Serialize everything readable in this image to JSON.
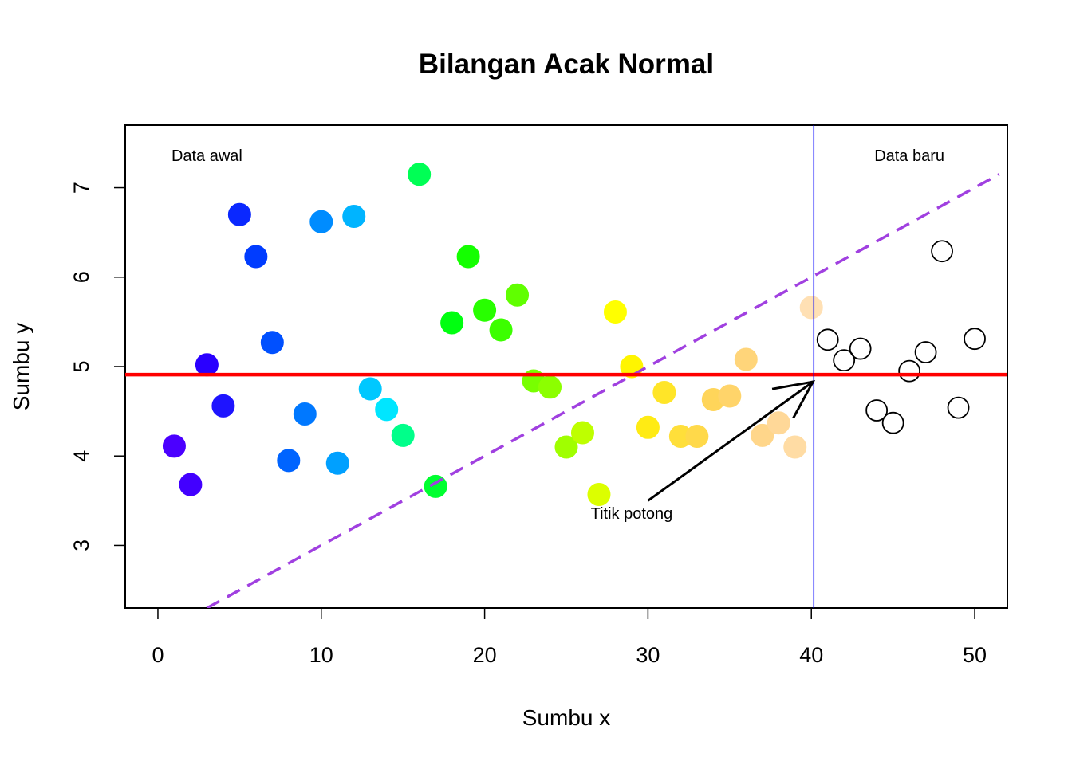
{
  "chart_data": {
    "type": "scatter",
    "title": "Bilangan Acak Normal",
    "xlabel": "Sumbu x",
    "ylabel": "Sumbu y",
    "xlim": [
      -2,
      52
    ],
    "ylim": [
      2.3,
      7.7
    ],
    "xticks": [
      0,
      10,
      20,
      30,
      40,
      50
    ],
    "yticks": [
      3,
      4,
      5,
      6,
      7
    ],
    "grid": false,
    "series": [
      {
        "kind": "filled-rainbow",
        "points": [
          {
            "x": 1,
            "y": 4.11,
            "color": "#4B00FF"
          },
          {
            "x": 2,
            "y": 3.68,
            "color": "#4200FF"
          },
          {
            "x": 3,
            "y": 5.02,
            "color": "#2A00FF"
          },
          {
            "x": 4,
            "y": 4.56,
            "color": "#1E14FF"
          },
          {
            "x": 5,
            "y": 6.7,
            "color": "#0A28FF"
          },
          {
            "x": 6,
            "y": 6.23,
            "color": "#003CFF"
          },
          {
            "x": 7,
            "y": 5.27,
            "color": "#0050FF"
          },
          {
            "x": 8,
            "y": 3.95,
            "color": "#0064FF"
          },
          {
            "x": 9,
            "y": 4.47,
            "color": "#0078FF"
          },
          {
            "x": 10,
            "y": 6.62,
            "color": "#008CFF"
          },
          {
            "x": 11,
            "y": 3.92,
            "color": "#00A0FF"
          },
          {
            "x": 12,
            "y": 6.68,
            "color": "#00B4FF"
          },
          {
            "x": 13,
            "y": 4.75,
            "color": "#00C8FF"
          },
          {
            "x": 14,
            "y": 4.52,
            "color": "#00E6FF"
          },
          {
            "x": 15,
            "y": 4.23,
            "color": "#00FF8A"
          },
          {
            "x": 16,
            "y": 7.15,
            "color": "#00FF55"
          },
          {
            "x": 17,
            "y": 3.66,
            "color": "#00FF30"
          },
          {
            "x": 18,
            "y": 5.49,
            "color": "#00FF10"
          },
          {
            "x": 19,
            "y": 6.23,
            "color": "#14FF00"
          },
          {
            "x": 20,
            "y": 5.63,
            "color": "#28FF00"
          },
          {
            "x": 21,
            "y": 5.41,
            "color": "#3CFF00"
          },
          {
            "x": 22,
            "y": 5.8,
            "color": "#60FF00"
          },
          {
            "x": 23,
            "y": 4.84,
            "color": "#78FF00"
          },
          {
            "x": 24,
            "y": 4.77,
            "color": "#8CFF00"
          },
          {
            "x": 25,
            "y": 4.1,
            "color": "#A0FF00"
          },
          {
            "x": 26,
            "y": 4.26,
            "color": "#BEFF00"
          },
          {
            "x": 27,
            "y": 3.57,
            "color": "#DCFF00"
          },
          {
            "x": 28,
            "y": 5.61,
            "color": "#FFFF00"
          },
          {
            "x": 29,
            "y": 5.0,
            "color": "#FFF500"
          },
          {
            "x": 30,
            "y": 4.32,
            "color": "#FFEB14"
          },
          {
            "x": 31,
            "y": 4.71,
            "color": "#FFE528"
          },
          {
            "x": 32,
            "y": 4.22,
            "color": "#FFDF3A"
          },
          {
            "x": 33,
            "y": 4.22,
            "color": "#FFD94A"
          },
          {
            "x": 34,
            "y": 4.63,
            "color": "#FFD55A"
          },
          {
            "x": 35,
            "y": 4.67,
            "color": "#FFD46A"
          },
          {
            "x": 36,
            "y": 5.08,
            "color": "#FFD57A"
          },
          {
            "x": 37,
            "y": 4.23,
            "color": "#FFD68A"
          },
          {
            "x": 38,
            "y": 4.37,
            "color": "#FFD898"
          },
          {
            "x": 39,
            "y": 4.1,
            "color": "#FFDCA4"
          },
          {
            "x": 40,
            "y": 5.66,
            "color": "#FFE0B4"
          }
        ]
      },
      {
        "kind": "open-circles",
        "color": "#000000",
        "points": [
          {
            "x": 41,
            "y": 5.3
          },
          {
            "x": 42,
            "y": 5.07
          },
          {
            "x": 43,
            "y": 5.2
          },
          {
            "x": 44,
            "y": 4.51
          },
          {
            "x": 45,
            "y": 4.37
          },
          {
            "x": 46,
            "y": 4.95
          },
          {
            "x": 47,
            "y": 5.16
          },
          {
            "x": 48,
            "y": 6.29
          },
          {
            "x": 49,
            "y": 4.54
          },
          {
            "x": 50,
            "y": 5.31
          }
        ]
      }
    ],
    "hline": {
      "y": 4.91,
      "color": "#FF0000"
    },
    "vline": {
      "x": 40.15,
      "color": "#0000FF"
    },
    "dashed_line": {
      "x1": 3,
      "y1": 2.3,
      "x2": 51.5,
      "y2": 7.15,
      "color": "#A040E0"
    },
    "arrow": {
      "from_x": 30,
      "from_y": 3.5,
      "to_x": 40.1,
      "to_y": 4.83,
      "color": "#000000"
    },
    "annotations": [
      {
        "text": "Data awal",
        "x": 3,
        "y": 7.3
      },
      {
        "text": "Data baru",
        "x": 46,
        "y": 7.3
      },
      {
        "text": "Titik potong",
        "x": 29,
        "y": 3.3
      }
    ]
  }
}
